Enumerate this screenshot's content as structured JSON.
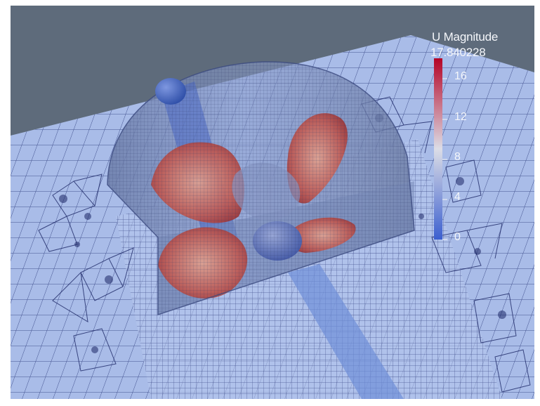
{
  "colorbar": {
    "title": "U Magnitude",
    "max_label": "17.840228",
    "range": [
      0,
      17.840228
    ],
    "ticks": [
      {
        "label": "16",
        "value": 16
      },
      {
        "label": "12",
        "value": 12
      },
      {
        "label": "8",
        "value": 8
      },
      {
        "label": "4",
        "value": 4
      },
      {
        "label": "0",
        "value": 0
      }
    ],
    "colors": {
      "low": "#3b5fcf",
      "mid": "#dcdde6",
      "high": "#b40426"
    }
  },
  "scene": {
    "background_color": "#5e6b7b",
    "ground_color": "#a9bce8",
    "mesh_line_color": "#2a3a7a"
  }
}
